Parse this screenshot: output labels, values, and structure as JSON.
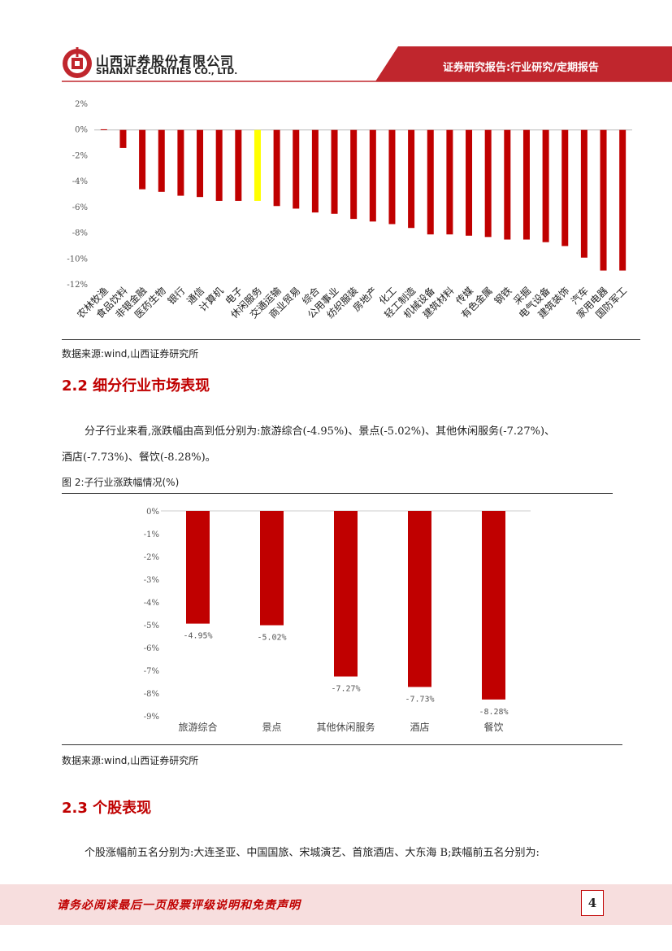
{
  "header": {
    "company_cn": "山西证券股份有限公司",
    "company_en": "SHANXI SECURITIES CO., LTD.",
    "report_type": "证券研究报告:行业研究/定期报告",
    "brand_color": "#c0262d"
  },
  "chart1": {
    "source": "数据来源:wind,山西证券研究所"
  },
  "section_2_2": {
    "heading": "2.2 细分行业市场表现",
    "para_line1": "分子行业来看,涨跌幅由高到低分别为:旅游综合(-4.95%)、景点(-5.02%)、其他休闲服务(-7.27%)、",
    "para_line2": "酒店(-7.73%)、餐饮(-8.28%)。",
    "figure_label": "图 2:子行业涨跌幅情况(%)",
    "source": "数据来源:wind,山西证券研究所"
  },
  "section_2_3": {
    "heading": "2.3 个股表现",
    "para": "个股涨幅前五名分别为:大连圣亚、中国国旅、宋城演艺、首旅酒店、大东海 B;跌幅前五名分别为:"
  },
  "footer": {
    "disclaimer": "请务必阅读最后一页股票评级说明和免责声明",
    "page_number": "4"
  },
  "chart_data": [
    {
      "type": "bar",
      "categories": [
        "农林牧渔",
        "食品饮料",
        "非银金融",
        "医药生物",
        "银行",
        "通信",
        "计算机",
        "电子",
        "休闲服务",
        "交通运输",
        "商业贸易",
        "综合",
        "公用事业",
        "纺织服装",
        "房地产",
        "化工",
        "轻工制造",
        "机械设备",
        "建筑材料",
        "传媒",
        "有色金属",
        "钢铁",
        "采掘",
        "电气设备",
        "建筑装饰",
        "汽车",
        "家用电器",
        "国防军工"
      ],
      "values": [
        0.05,
        -1.4,
        -4.6,
        -4.8,
        -5.1,
        -5.2,
        -5.5,
        -5.5,
        -5.5,
        -5.9,
        -6.1,
        -6.4,
        -6.5,
        -6.9,
        -7.1,
        -7.3,
        -7.6,
        -8.1,
        -8.1,
        -8.2,
        -8.3,
        -8.5,
        -8.5,
        -8.7,
        -9.0,
        -9.9,
        -10.9,
        -10.9
      ],
      "highlight_index": 8,
      "bar_color": "#c00000",
      "highlight_color": "#ffff00",
      "yticks": [
        "2%",
        "0%",
        "-2%",
        "-4%",
        "-6%",
        "-8%",
        "-10%",
        "-12%"
      ],
      "ylim": [
        -12,
        2
      ]
    },
    {
      "type": "bar",
      "categories": [
        "旅游综合",
        "景点",
        "其他休闲服务",
        "酒店",
        "餐饮"
      ],
      "values": [
        -4.95,
        -5.02,
        -7.27,
        -7.73,
        -8.28
      ],
      "data_labels": [
        "-4.95%",
        "-5.02%",
        "-7.27%",
        "-7.73%",
        "-8.28%"
      ],
      "bar_color": "#c00000",
      "yticks": [
        "0%",
        "-1%",
        "-2%",
        "-3%",
        "-4%",
        "-5%",
        "-6%",
        "-7%",
        "-8%",
        "-9%"
      ],
      "ylim": [
        -9,
        0
      ]
    }
  ]
}
